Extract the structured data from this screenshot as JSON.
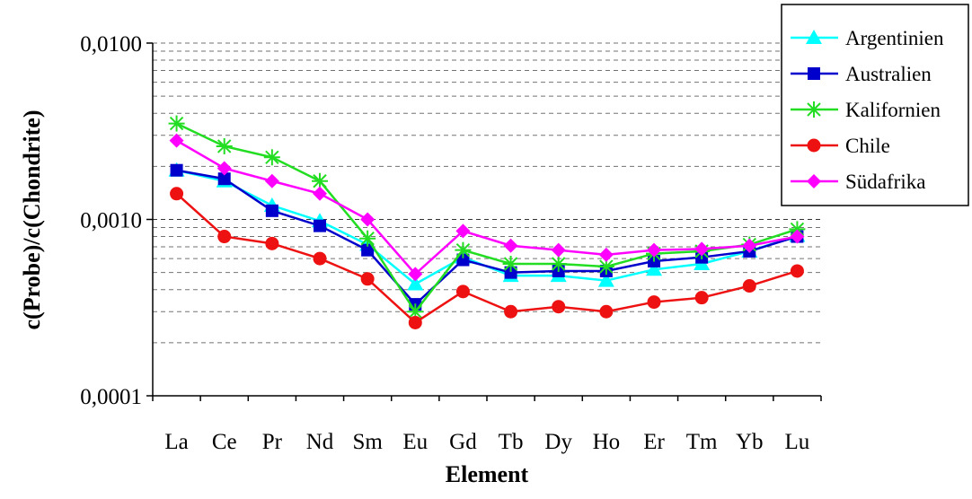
{
  "chart_data": {
    "type": "line",
    "title": "",
    "xlabel": "Element",
    "ylabel": "c(Probe)/c(Chondrite)",
    "y_scale": "log",
    "ylim": [
      0.0001,
      0.01
    ],
    "y_tick_labels": [
      "0,0100",
      "0,0010",
      "0,0001"
    ],
    "y_tick_values": [
      0.01,
      0.001,
      0.0001
    ],
    "grid": "dashed minor horizontal gridlines",
    "legend_position": "top-right",
    "categories": [
      "La",
      "Ce",
      "Pr",
      "Nd",
      "Sm",
      "Eu",
      "Gd",
      "Tb",
      "Dy",
      "Ho",
      "Er",
      "Tm",
      "Yb",
      "Lu"
    ],
    "series": [
      {
        "name": "Argentinien",
        "color": "#00FFFF",
        "marker": "triangle",
        "values": [
          0.0019,
          0.00165,
          0.0012,
          0.00098,
          0.00072,
          0.00043,
          0.00061,
          0.00048,
          0.00048,
          0.00045,
          0.00052,
          0.00056,
          0.00066,
          0.00081
        ]
      },
      {
        "name": "Australien",
        "color": "#0000CC",
        "marker": "square",
        "values": [
          0.0019,
          0.0017,
          0.00112,
          0.00092,
          0.00067,
          0.00033,
          0.00059,
          0.0005,
          0.00051,
          0.00051,
          0.00058,
          0.00061,
          0.00066,
          0.0008
        ]
      },
      {
        "name": "Kalifornien",
        "color": "#22DD22",
        "marker": "asterisk",
        "values": [
          0.0035,
          0.0026,
          0.00225,
          0.00165,
          0.00078,
          0.0003,
          0.00067,
          0.00056,
          0.00056,
          0.00054,
          0.00064,
          0.00066,
          0.00072,
          0.00088
        ]
      },
      {
        "name": "Chile",
        "color": "#EE1111",
        "marker": "circle",
        "values": [
          0.0014,
          0.0008,
          0.00073,
          0.0006,
          0.00046,
          0.00026,
          0.00039,
          0.0003,
          0.00032,
          0.0003,
          0.00034,
          0.00036,
          0.00042,
          0.00051
        ]
      },
      {
        "name": "Südafrika",
        "color": "#FF00FF",
        "marker": "diamond",
        "values": [
          0.0028,
          0.00195,
          0.00165,
          0.0014,
          0.001,
          0.00049,
          0.00086,
          0.00071,
          0.00067,
          0.00063,
          0.00067,
          0.00068,
          0.00071,
          0.0008
        ]
      }
    ]
  }
}
